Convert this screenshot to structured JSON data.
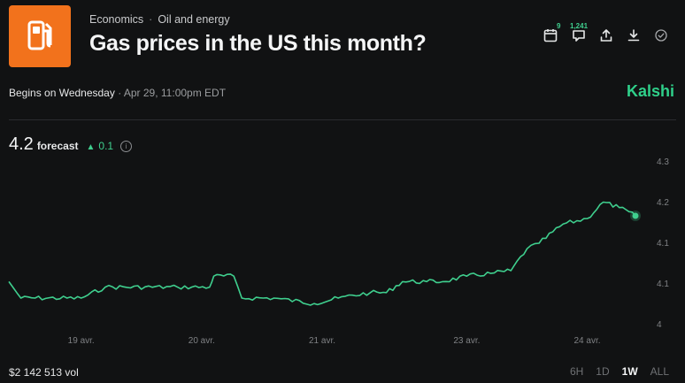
{
  "breadcrumb": {
    "category": "Economics",
    "separator": "·",
    "subcategory": "Oil and energy"
  },
  "market": {
    "title": "Gas prices in the US this month?"
  },
  "actions": {
    "calendar_badge": "9",
    "comments_count": "1,241"
  },
  "schedule": {
    "begins_label": "Begins on Wednesday",
    "separator": "·",
    "datetime": "Apr 29, 11:00pm EDT"
  },
  "brand": {
    "name": "Kalshi"
  },
  "forecast": {
    "value": "4.2",
    "label": "forecast",
    "change": "0.1",
    "change_direction": "up"
  },
  "volume": {
    "label": "$2 142 513 vol"
  },
  "ranges": [
    "6H",
    "1D",
    "1W",
    "ALL"
  ],
  "selected_range": "1W",
  "colors": {
    "accent": "#3fcf8e",
    "brand_icon": "#f2721c",
    "background": "#111213"
  },
  "icons": [
    "gas-pump-icon",
    "calendar-icon",
    "comment-icon",
    "share-icon",
    "download-icon",
    "check-circle-icon",
    "info-icon"
  ],
  "chart_data": {
    "type": "line",
    "x_ticks": [
      "19 avr.",
      "20 avr.",
      "21 avr.",
      "23 avr.",
      "24 avr."
    ],
    "y_ticks": [
      "4.3",
      "4.2",
      "4.1",
      "4.1",
      "4"
    ],
    "series": [
      {
        "points": [
          [
            "18 avr. 12:00",
            4.08
          ],
          [
            "18 avr. 15:00",
            4.05
          ],
          [
            "19 avr. 06:00",
            4.05
          ],
          [
            "19 avr. 12:00",
            4.07
          ],
          [
            "20 avr. 06:00",
            4.07
          ],
          [
            "20 avr. 14:00",
            4.07
          ],
          [
            "20 avr. 15:00",
            4.09
          ],
          [
            "20 avr. 20:00",
            4.09
          ],
          [
            "20 avr. 22:00",
            4.05
          ],
          [
            "21 avr. 06:00",
            4.05
          ],
          [
            "21 avr. 16:00",
            4.04
          ],
          [
            "21 avr. 22:00",
            4.05
          ],
          [
            "22 avr. 06:00",
            4.06
          ],
          [
            "22 avr. 10:00",
            4.06
          ],
          [
            "22 avr. 14:00",
            4.08
          ],
          [
            "22 avr. 20:00",
            4.08
          ],
          [
            "23 avr. 00:00",
            4.08
          ],
          [
            "23 avr. 06:00",
            4.09
          ],
          [
            "23 avr. 12:00",
            4.095
          ],
          [
            "23 avr. 17:00",
            4.1
          ],
          [
            "23 avr. 21:00",
            4.14
          ],
          [
            "24 avr. 00:00",
            4.15
          ],
          [
            "24 avr. 06:00",
            4.185
          ],
          [
            "24 avr. 12:00",
            4.195
          ],
          [
            "24 avr. 16:00",
            4.225
          ],
          [
            "24 avr. 20:00",
            4.215
          ],
          [
            "25 avr. 00:00",
            4.2
          ]
        ]
      }
    ],
    "ylim": [
      4.0,
      4.3
    ],
    "grid": false,
    "current_marker": true
  }
}
